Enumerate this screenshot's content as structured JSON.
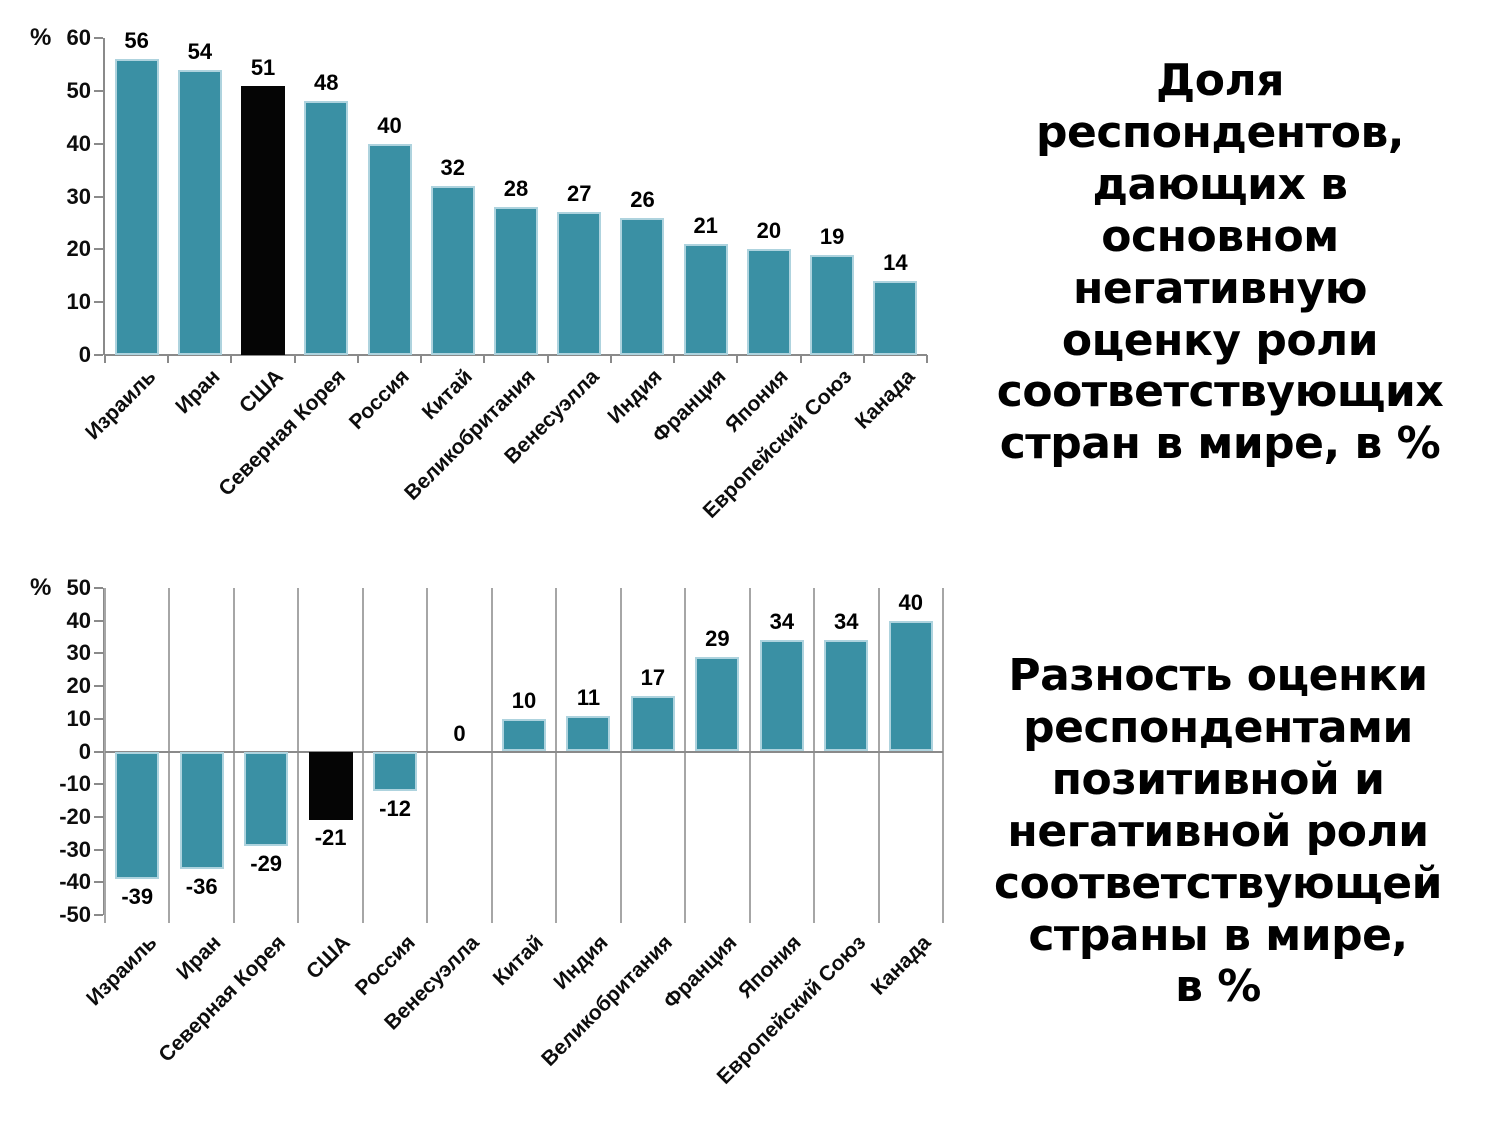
{
  "chart_data": [
    {
      "type": "bar",
      "title": "Доля\nреспондентов,\nдающих в\nосновном\nнегативную\nоценку роли\nсоответствующих\nстран в мире, в %",
      "y_unit": "%",
      "ylim": [
        0,
        60
      ],
      "ytick_step": 10,
      "yticks": [
        0,
        10,
        20,
        30,
        40,
        50,
        60
      ],
      "categories": [
        "Израиль",
        "Иран",
        "США",
        "Северная Корея",
        "Россия",
        "Китай",
        "Великобритания",
        "Венесуэлла",
        "Индия",
        "Франция",
        "Япония",
        "Европейский Союз",
        "Канада"
      ],
      "values": [
        56,
        54,
        51,
        48,
        40,
        32,
        28,
        27,
        26,
        21,
        20,
        19,
        14
      ],
      "highlight_category": "США",
      "bar_color": "#3a90a4",
      "bar_border_color": "#aed3de",
      "highlight_color": "#050505",
      "axis_color": "#8a8a8a",
      "grid": false,
      "legend": "none"
    },
    {
      "type": "bar",
      "title": "Разность оценки\nреспондентами\nпозитивной и\nнегативной роли\nсоответствующей\nстраны в мире,\nв %",
      "y_unit": "%",
      "ylim": [
        -50,
        50
      ],
      "ytick_step": 10,
      "yticks": [
        -50,
        -40,
        -30,
        -20,
        -10,
        0,
        10,
        20,
        30,
        40,
        50
      ],
      "categories": [
        "Израиль",
        "Иран",
        "Северная Корея",
        "США",
        "Россия",
        "Венесуэлла",
        "Китай",
        "Индия",
        "Великобритания",
        "Франция",
        "Япония",
        "Европейский Союз",
        "Канада"
      ],
      "values": [
        -39,
        -36,
        -29,
        -21,
        -12,
        0,
        10,
        11,
        17,
        29,
        34,
        34,
        40
      ],
      "highlight_category": "США",
      "bar_color": "#3a90a4",
      "bar_border_color": "#aed3de",
      "highlight_color": "#050505",
      "axis_color": "#8a8a8a",
      "grid": true,
      "legend": "none"
    }
  ]
}
